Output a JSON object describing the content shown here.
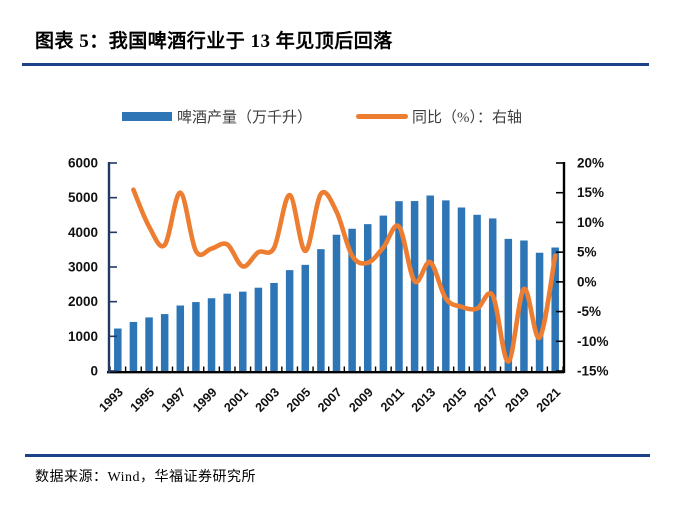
{
  "header": {
    "title": "图表 5：我国啤酒行业于 13 年见顶后回落"
  },
  "legend": [
    {
      "label": "啤酒产量（万千升）",
      "swatch": "bar-swatch",
      "color": "#2E75B6"
    },
    {
      "label": "同比（%）：右轴",
      "swatch": "line-swatch",
      "color": "#ED7D31"
    }
  ],
  "footer": {
    "source": "数据来源：Wind，华福证券研究所"
  },
  "colors": {
    "bar_blue": "#2E75B6",
    "line_orange": "#ED7D31",
    "navy_rule": "#1B4289",
    "left_axis": "#1F3864",
    "axis_black": "#000000",
    "tick_label": "#111111"
  },
  "chart_data": {
    "type": "bar",
    "title": "图表 5：我国啤酒行业于 13 年见顶后回落",
    "categories": [
      "1993",
      "1994",
      "1995",
      "1996",
      "1997",
      "1998",
      "1999",
      "2000",
      "2001",
      "2002",
      "2003",
      "2004",
      "2005",
      "2006",
      "2007",
      "2008",
      "2009",
      "2010",
      "2011",
      "2012",
      "2013",
      "2014",
      "2015",
      "2016",
      "2017",
      "2018",
      "2019",
      "2020",
      "2021"
    ],
    "x_tick_labels": [
      "1993",
      "1995",
      "1997",
      "1999",
      "2001",
      "2003",
      "2005",
      "2007",
      "2009",
      "2011",
      "2013",
      "2015",
      "2017",
      "2019",
      "2021"
    ],
    "series": [
      {
        "name": "啤酒产量（万千升）",
        "kind": "bar",
        "axis": "left",
        "values": [
          1225,
          1415,
          1546,
          1642,
          1889,
          1988,
          2099,
          2231,
          2289,
          2403,
          2540,
          2910,
          3062,
          3515,
          3931,
          4103,
          4236,
          4483,
          4899,
          4902,
          5062,
          4922,
          4716,
          4506,
          4401,
          3812,
          3765,
          3411,
          3562
        ]
      },
      {
        "name": "同比（%）：右轴",
        "kind": "line",
        "axis": "right",
        "start_category": "1994",
        "values": [
          15.5,
          9.3,
          6.2,
          15.0,
          5.2,
          5.6,
          6.3,
          2.6,
          5.0,
          5.7,
          14.6,
          5.2,
          14.8,
          11.8,
          4.4,
          3.2,
          5.8,
          9.3,
          0.1,
          3.3,
          -2.8,
          -4.2,
          -4.5,
          -2.3,
          -13.4,
          -1.2,
          -9.4,
          4.4
        ]
      }
    ],
    "left_axis": {
      "min": 0,
      "max": 6000,
      "step": 1000
    },
    "right_axis": {
      "min": -15,
      "max": 20,
      "step": 5,
      "format": "percent"
    },
    "grid": false,
    "legend_position": "top"
  }
}
